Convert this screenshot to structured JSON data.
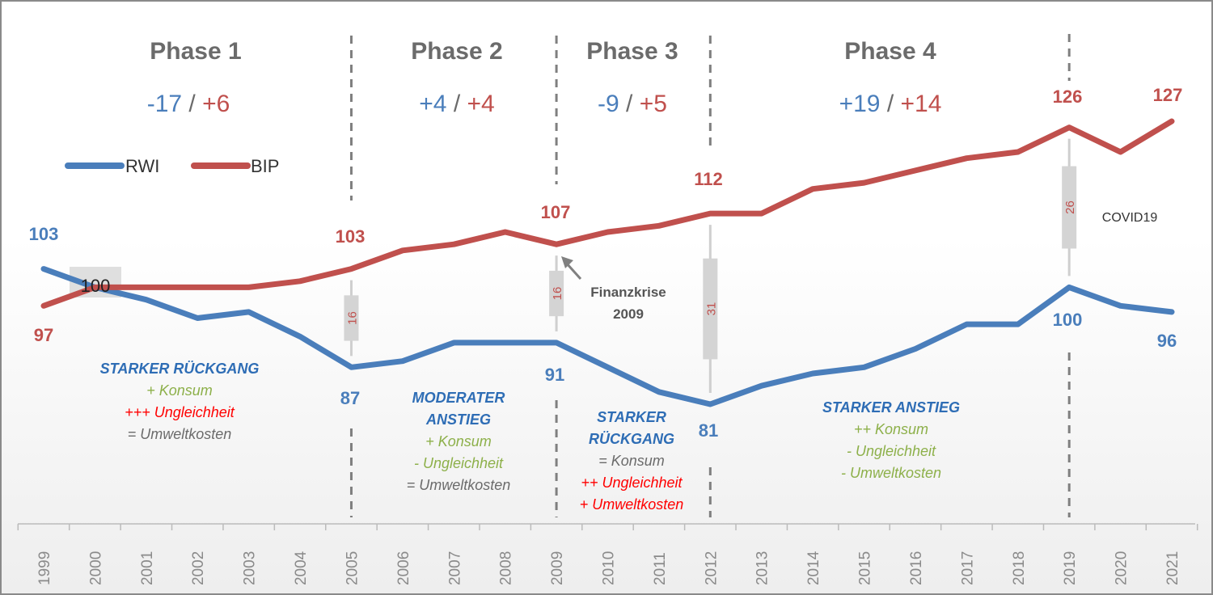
{
  "chart_data": {
    "type": "line",
    "title": "",
    "xlabel": "",
    "ylabel": "",
    "x": [
      "1999",
      "2000",
      "2001",
      "2002",
      "2003",
      "2004",
      "2005",
      "2006",
      "2007",
      "2008",
      "2009",
      "2010",
      "2011",
      "2012",
      "2013",
      "2014",
      "2015",
      "2016",
      "2017",
      "2018",
      "2019",
      "2020",
      "2021"
    ],
    "ylim": [
      70,
      135
    ],
    "series": [
      {
        "name": "RWI",
        "color": "#4a7ebb",
        "values": [
          103,
          100,
          98,
          95,
          96,
          92,
          87,
          88,
          91,
          91,
          91,
          87,
          83,
          81,
          84,
          86,
          87,
          90,
          94,
          94,
          100,
          97,
          96
        ]
      },
      {
        "name": "BIP",
        "color": "#c0504d",
        "values": [
          97,
          100,
          100,
          100,
          100,
          101,
          103,
          106,
          107,
          109,
          107,
          109,
          110,
          112,
          112,
          116,
          117,
          119,
          121,
          122,
          126,
          122,
          127
        ]
      }
    ],
    "legend": [
      {
        "name": "RWI",
        "color": "#4a7ebb"
      },
      {
        "name": "BIP",
        "color": "#c0504d"
      }
    ],
    "phases": [
      {
        "title": "Phase 1",
        "rwi_change": "-17",
        "bip_change": "+6"
      },
      {
        "title": "Phase 2",
        "rwi_change": "+4",
        "bip_change": "+4"
      },
      {
        "title": "Phase 3",
        "rwi_change": "-9",
        "bip_change": "+5"
      },
      {
        "title": "Phase 4",
        "rwi_change": "+19",
        "bip_change": "+14"
      }
    ],
    "separator": "/",
    "point_labels": {
      "rwi": [
        {
          "year": "1999",
          "text": "103"
        },
        {
          "year": "2005",
          "text": "87"
        },
        {
          "year": "2009",
          "text": "91"
        },
        {
          "year": "2012",
          "text": "81"
        },
        {
          "year": "2019",
          "text": "100"
        },
        {
          "year": "2021",
          "text": "96"
        }
      ],
      "bip": [
        {
          "year": "1999",
          "text": "97"
        },
        {
          "year": "2005",
          "text": "103"
        },
        {
          "year": "2009",
          "text": "107"
        },
        {
          "year": "2012",
          "text": "112"
        },
        {
          "year": "2019",
          "text": "126"
        },
        {
          "year": "2021",
          "text": "127"
        }
      ],
      "index_base": "100"
    },
    "gap_bars": [
      {
        "year": "2005",
        "value": "16"
      },
      {
        "year": "2009",
        "value": "16"
      },
      {
        "year": "2012",
        "value": "31"
      },
      {
        "year": "2019",
        "value": "26"
      }
    ],
    "annotations": {
      "finanzkrise": [
        "Finanzkrise",
        "2009"
      ],
      "covid": "COVID19",
      "phase_notes": [
        {
          "lines": [
            {
              "text": "STARKER RÜCKGANG",
              "kind": "head"
            },
            {
              "text": "+ Konsum",
              "kind": "green"
            },
            {
              "text": "+++ Ungleichheit",
              "kind": "red"
            },
            {
              "text": "= Umweltkosten",
              "kind": "gray"
            }
          ]
        },
        {
          "lines": [
            {
              "text": "MODERATER",
              "kind": "head"
            },
            {
              "text": "ANSTIEG",
              "kind": "head"
            },
            {
              "text": "+ Konsum",
              "kind": "green"
            },
            {
              "text": "- Ungleichheit",
              "kind": "green"
            },
            {
              "text": "= Umweltkosten",
              "kind": "gray"
            }
          ]
        },
        {
          "lines": [
            {
              "text": "STARKER",
              "kind": "head"
            },
            {
              "text": "RÜCKGANG",
              "kind": "head"
            },
            {
              "text": "= Konsum",
              "kind": "gray"
            },
            {
              "text": "++ Ungleichheit",
              "kind": "red"
            },
            {
              "text": "+ Umweltkosten",
              "kind": "red"
            }
          ]
        },
        {
          "lines": [
            {
              "text": "STARKER ANSTIEG",
              "kind": "head"
            },
            {
              "text": "++ Konsum",
              "kind": "green"
            },
            {
              "text": "- Ungleichheit",
              "kind": "green"
            },
            {
              "text": "- Umweltkosten",
              "kind": "green"
            }
          ]
        }
      ]
    }
  }
}
